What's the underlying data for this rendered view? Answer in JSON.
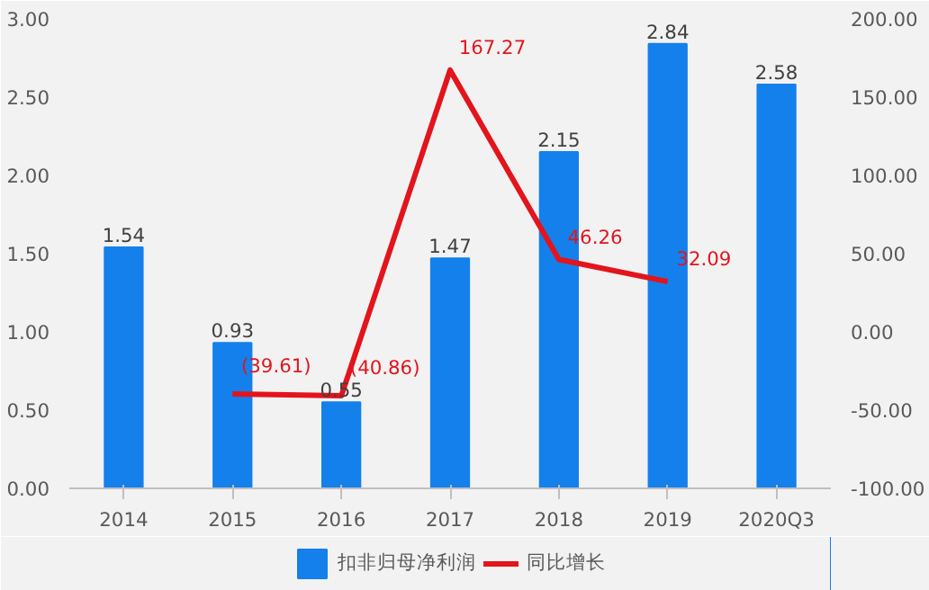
{
  "chart_data": {
    "type": "bar",
    "categories": [
      "2014",
      "2015",
      "2016",
      "2017",
      "2018",
      "2019",
      "2020Q3"
    ],
    "series": [
      {
        "name": "扣非归母净利润",
        "color": "#1480ec",
        "values": [
          1.54,
          0.93,
          0.55,
          1.47,
          2.15,
          2.84,
          2.58
        ],
        "value_labels": [
          "1.54",
          "0.93",
          "0.55",
          "1.47",
          "2.15",
          "2.84",
          "2.58"
        ]
      },
      {
        "name": "同比增长",
        "type": "line",
        "axis": "y2",
        "color": "#e3141c",
        "values": [
          null,
          -39.61,
          -40.86,
          167.27,
          46.26,
          32.09,
          null
        ],
        "value_labels": [
          null,
          "(39.61)",
          "(40.86)",
          "167.27",
          "46.26",
          "32.09",
          null
        ]
      }
    ],
    "ylim": [
      0,
      3
    ],
    "yticks": [
      {
        "value": 0,
        "label": "0.00"
      },
      {
        "value": 0.5,
        "label": "0.50"
      },
      {
        "value": 1,
        "label": "1.00"
      },
      {
        "value": 1.5,
        "label": "1.50"
      },
      {
        "value": 2,
        "label": "2.00"
      },
      {
        "value": 2.5,
        "label": "2.50"
      },
      {
        "value": 3,
        "label": "3.00"
      }
    ],
    "y2lim": [
      -100,
      200
    ],
    "y2ticks": [
      {
        "value": -100,
        "label": "-100.00"
      },
      {
        "value": -50,
        "label": "-50.00"
      },
      {
        "value": 0,
        "label": "0.00"
      },
      {
        "value": 50,
        "label": "50.00"
      },
      {
        "value": 100,
        "label": "100.00"
      },
      {
        "value": 150,
        "label": "150.00"
      },
      {
        "value": 200,
        "label": "200.00"
      }
    ],
    "grid": false,
    "legend": "bottom"
  }
}
